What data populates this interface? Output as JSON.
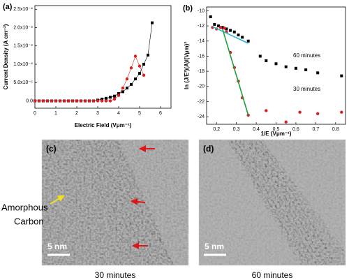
{
  "chart_data": [
    {
      "type": "line",
      "label": "(a)",
      "xlabel": "Electric Field (Vμm⁻¹)",
      "ylabel": "Current Density (A cm⁻²)",
      "xlim": [
        0,
        6.5
      ],
      "xticks": [
        0,
        1,
        2,
        3,
        4,
        5,
        6
      ],
      "ylim": [
        -2e-05,
        0.00026
      ],
      "yticks": [
        {
          "value": 0,
          "label": "0.0"
        },
        {
          "value": 5e-05,
          "label": "5.0x10⁻⁵"
        },
        {
          "value": 0.0001,
          "label": "1.0x10⁻⁴"
        },
        {
          "value": 0.00015,
          "label": "1.5x10⁻⁴"
        },
        {
          "value": 0.0002,
          "label": "2.0x10⁻⁴"
        },
        {
          "value": 0.00025,
          "label": "2.5x10⁻⁴"
        }
      ],
      "series": [
        {
          "marker": "square",
          "color": "#000000",
          "x": [
            0,
            0.2,
            0.4,
            0.6,
            0.8,
            1.0,
            1.2,
            1.4,
            1.6,
            1.8,
            2.0,
            2.2,
            2.4,
            2.6,
            2.8,
            3.0,
            3.2,
            3.4,
            3.6,
            3.8,
            4.0,
            4.2,
            4.4,
            4.6,
            4.8,
            5.0,
            5.2,
            5.4,
            5.6
          ],
          "values": [
            0,
            0,
            0,
            0,
            0,
            0,
            0,
            0,
            0,
            0,
            0,
            0,
            0,
            0,
            0,
            2e-06,
            5e-06,
            7e-06,
            1e-05,
            1.3e-05,
            2e-05,
            2.5e-05,
            3.5e-05,
            4.5e-05,
            6e-05,
            7.5e-05,
            0.0001,
            0.000125,
            0.000213
          ]
        },
        {
          "marker": "circle",
          "color": "#d62020",
          "x": [
            0,
            0.2,
            0.4,
            0.6,
            0.8,
            1.0,
            1.2,
            1.4,
            1.6,
            1.8,
            2.0,
            2.2,
            2.4,
            2.6,
            2.8,
            3.0,
            3.2,
            3.4,
            3.6,
            3.8,
            4.0,
            4.2,
            4.4,
            4.6,
            4.8,
            5.0,
            5.2
          ],
          "values": [
            0,
            0,
            0,
            0,
            0,
            0,
            0,
            0,
            0,
            0,
            0,
            0,
            0,
            0,
            0,
            0,
            0,
            0,
            0,
            5e-06,
            1.5e-05,
            3.5e-05,
            6e-05,
            9e-05,
            0.000122,
            9.5e-05,
            7e-05
          ]
        }
      ]
    },
    {
      "type": "scatter",
      "label": "(b)",
      "xlabel": "1/E (Vμm⁻¹)",
      "ylabel": "ln (J/E²)(A)/(Vμm)²",
      "xlim": [
        0.15,
        0.85
      ],
      "xticks": [
        0.2,
        0.3,
        0.4,
        0.5,
        0.6,
        0.7,
        0.8
      ],
      "ylim": [
        -25,
        -9.5
      ],
      "yticks": [
        -24,
        -22,
        -20,
        -18,
        -16,
        -14,
        -12,
        -10
      ],
      "annotations": [
        "60 minutes",
        "30 minutes"
      ],
      "series": [
        {
          "marker": "square",
          "color": "#000000",
          "x": [
            0.17,
            0.19,
            0.21,
            0.23,
            0.25,
            0.27,
            0.29,
            0.31,
            0.33,
            0.36,
            0.42,
            0.45,
            0.5,
            0.55,
            0.6,
            0.65,
            0.71,
            0.83
          ],
          "values": [
            -10.8,
            -11.8,
            -12.0,
            -12.2,
            -12.4,
            -12.6,
            -12.8,
            -13.2,
            -13.5,
            -14.0,
            -16.0,
            -16.6,
            -17.0,
            -17.4,
            -17.6,
            -17.8,
            -18.2,
            -18.6
          ]
        },
        {
          "marker": "circle",
          "color": "#d62020",
          "x": [
            0.18,
            0.2,
            0.22,
            0.24,
            0.25,
            0.27,
            0.29,
            0.31,
            0.33,
            0.36,
            0.45,
            0.55,
            0.62,
            0.71,
            0.83
          ],
          "values": [
            -12.2,
            -12.4,
            -12.2,
            -12.3,
            -12.8,
            -15.5,
            -17.5,
            -19.3,
            -21.5,
            -23.8,
            -23.2,
            -24.7,
            -23.4,
            -23.6,
            -23.4
          ]
        }
      ],
      "fits": [
        {
          "color": "#2bb3d8",
          "x": [
            0.18,
            0.36
          ],
          "values": [
            -12.1,
            -14.3
          ]
        },
        {
          "color": "#1f9e3a",
          "x": [
            0.23,
            0.36
          ],
          "values": [
            -12.4,
            -23.8
          ]
        }
      ]
    }
  ],
  "images": [
    {
      "label": "(c)",
      "scale": "5 nm",
      "annotation": [
        "Amorphous",
        "Carbon"
      ],
      "caption": "30 minutes"
    },
    {
      "label": "(d)",
      "scale": "5 nm",
      "caption": "60 minutes"
    }
  ]
}
